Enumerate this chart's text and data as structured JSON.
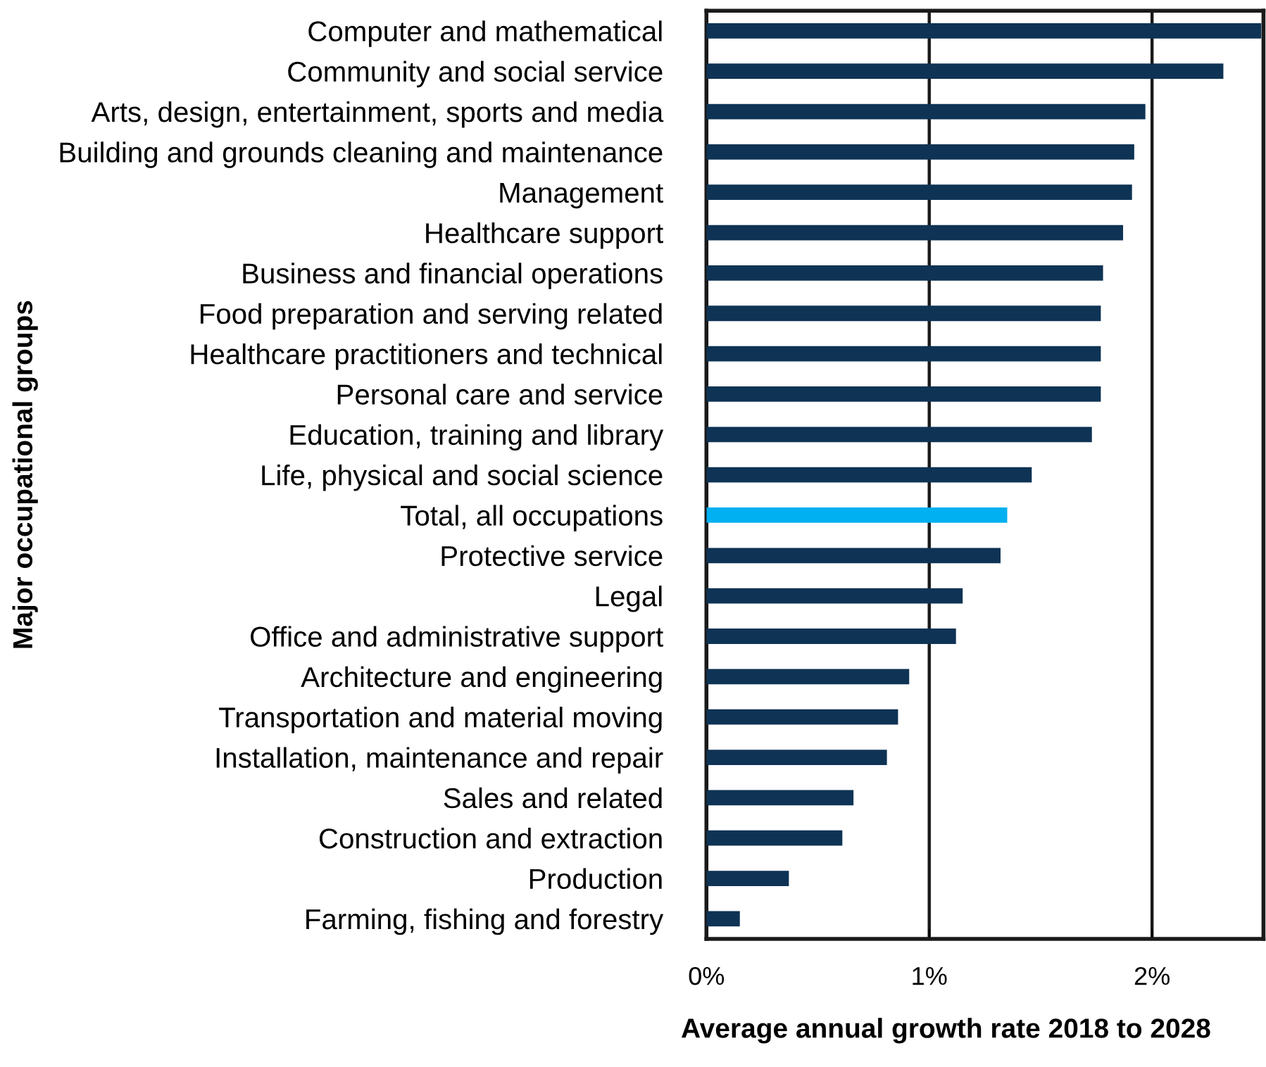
{
  "chart_data": {
    "type": "bar",
    "orientation": "horizontal",
    "categories": [
      "Computer and mathematical",
      "Community and social service",
      "Arts, design, entertainment, sports and media",
      "Building and grounds cleaning and maintenance",
      "Management",
      "Healthcare support",
      "Business and financial operations",
      "Food preparation and serving related",
      "Healthcare practitioners and technical",
      "Personal care and service",
      "Education, training and library",
      "Life, physical and social science",
      "Total, all occupations",
      "Protective service",
      "Legal",
      "Office and administrative support",
      "Architecture and engineering",
      "Transportation and material moving",
      "Installation, maintenance and repair",
      "Sales and related",
      "Construction and extraction",
      "Production",
      "Farming, fishing and forestry"
    ],
    "values": [
      2.49,
      2.32,
      1.97,
      1.92,
      1.91,
      1.87,
      1.78,
      1.77,
      1.77,
      1.77,
      1.73,
      1.46,
      1.35,
      1.32,
      1.15,
      1.12,
      0.91,
      0.86,
      0.81,
      0.66,
      0.61,
      0.37,
      0.15
    ],
    "colors": [
      "#0e3354",
      "#0e3354",
      "#0e3354",
      "#0e3354",
      "#0e3354",
      "#0e3354",
      "#0e3354",
      "#0e3354",
      "#0e3354",
      "#0e3354",
      "#0e3354",
      "#0e3354",
      "#00b0f0",
      "#0e3354",
      "#0e3354",
      "#0e3354",
      "#0e3354",
      "#0e3354",
      "#0e3354",
      "#0e3354",
      "#0e3354",
      "#0e3354",
      "#0e3354"
    ],
    "xlim": [
      0,
      2.5
    ],
    "xticks": [
      {
        "value": 0,
        "label": "0%"
      },
      {
        "value": 1,
        "label": "1%"
      },
      {
        "value": 2,
        "label": "2%"
      }
    ],
    "grid": "x",
    "xlabel": "Average annual growth rate 2018 to 2028",
    "ylabel": "Major occupational groups"
  }
}
